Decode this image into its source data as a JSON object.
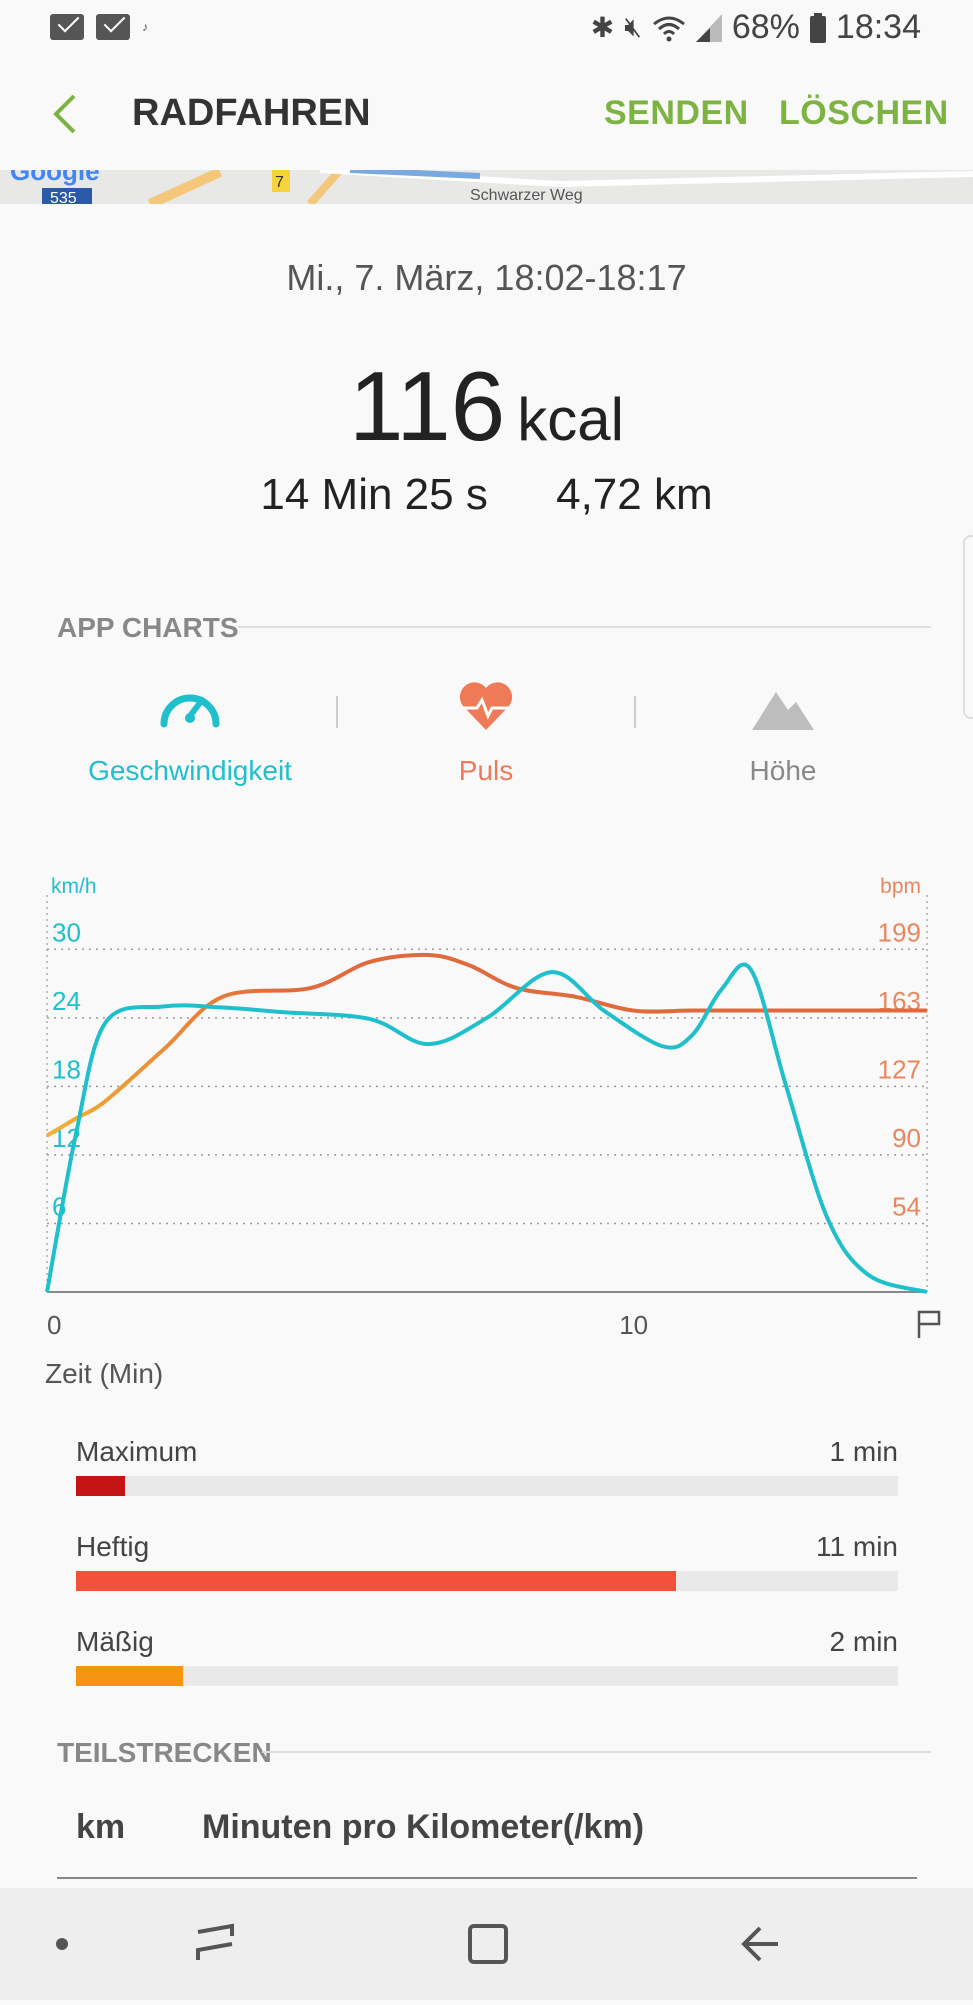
{
  "status_bar": {
    "battery": "68%",
    "time": "18:34"
  },
  "app_bar": {
    "title": "RADFAHREN",
    "send_label": "SENDEN",
    "delete_label": "LÖSCHEN"
  },
  "map": {
    "road_number": "535",
    "road_number_2": "7",
    "street_label": "Schwarzer Weg"
  },
  "summary": {
    "date_range": "Mi., 7. März, 18:02-18:17",
    "calories_value": "116",
    "calories_unit": "kcal",
    "duration": "14 Min 25 s",
    "distance": "4,72 km"
  },
  "app_charts": {
    "section_title": "APP CHARTS",
    "tabs": [
      {
        "label": "Geschwindigkeit",
        "icon": "speedometer-icon",
        "color": "#1fbfcc"
      },
      {
        "label": "Puls",
        "icon": "heart-rate-icon",
        "color": "#ef7a57"
      },
      {
        "label": "Höhe",
        "icon": "mountain-icon",
        "color": "#999999"
      }
    ]
  },
  "chart_data": {
    "type": "line",
    "left_unit": "km/h",
    "right_unit": "bpm",
    "left_ticks": [
      "30",
      "24",
      "18",
      "12",
      "6"
    ],
    "right_ticks": [
      "199",
      "163",
      "127",
      "90",
      "54"
    ],
    "x_ticks": [
      "0",
      "10"
    ],
    "xlabel": "Zeit (Min)",
    "xlim": [
      0,
      15
    ],
    "ylim_left": [
      0,
      33
    ],
    "ylim_right": [
      0,
      217
    ],
    "series": [
      {
        "axis": "left",
        "color": "#1fbfcc",
        "x": [
          0,
          0.5,
          1.0,
          2.0,
          3.0,
          4.0,
          5.5,
          6.5,
          7.5,
          8.6,
          9.5,
          10.5,
          11.0,
          11.5,
          12.0,
          12.6,
          13.3,
          14.0,
          15.0
        ],
        "y": [
          0,
          14,
          23.6,
          25.0,
          24.9,
          24.5,
          23.9,
          21.7,
          24.0,
          28.0,
          24.6,
          21.5,
          22.5,
          26.5,
          28.2,
          18.0,
          6.5,
          1.5,
          0
        ]
      },
      {
        "axis": "right",
        "color": "#e06a3b",
        "x": [
          0,
          0.5,
          1.0,
          2.0,
          3.0,
          4.5,
          5.5,
          6.5,
          7.2,
          8.0,
          9.0,
          10.0,
          11.0,
          12.0,
          13.0,
          14.0,
          15.0
        ],
        "y": [
          90,
          100,
          110,
          140,
          170,
          175,
          190,
          194,
          188,
          175,
          170,
          162,
          162,
          162,
          162,
          162,
          162
        ]
      }
    ]
  },
  "heart_rate_zones": [
    {
      "name": "Maximum",
      "value": "1 min",
      "fraction": 0.06,
      "color": "#c41414"
    },
    {
      "name": "Heftig",
      "value": "11 min",
      "fraction": 0.73,
      "color": "#f4513a"
    },
    {
      "name": "Mäßig",
      "value": "2 min",
      "fraction": 0.13,
      "color": "#f5950f"
    }
  ],
  "splits": {
    "section_title": "TEILSTRECKEN",
    "col_km": "km",
    "col_pace": "Minuten pro Kilometer(/km)"
  }
}
